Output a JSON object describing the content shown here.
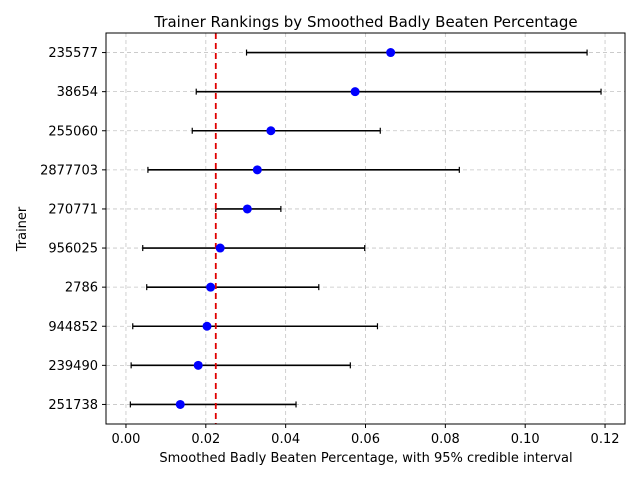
{
  "chart_data": {
    "type": "scatter",
    "title": "Trainer Rankings by Smoothed Badly Beaten Percentage",
    "xlabel": "Smoothed Badly Beaten Percentage, with 95% credible interval",
    "ylabel": "Trainer",
    "xlim": [
      -0.005,
      0.125
    ],
    "x_ticks": [
      "0.00",
      "0.02",
      "0.04",
      "0.06",
      "0.08",
      "0.10",
      "0.12"
    ],
    "grid": true,
    "reference_line": {
      "x": 0.0225,
      "color": "#e00000",
      "style": "dashed"
    },
    "point_color": "#0000ff",
    "errorbar_color": "#000000",
    "trainers": [
      {
        "name": "235577",
        "value": 0.0663,
        "low": 0.0302,
        "high": 0.1155
      },
      {
        "name": "38654",
        "value": 0.0574,
        "low": 0.0176,
        "high": 0.119
      },
      {
        "name": "255060",
        "value": 0.0363,
        "low": 0.0166,
        "high": 0.0637
      },
      {
        "name": "2877703",
        "value": 0.0329,
        "low": 0.0055,
        "high": 0.0835
      },
      {
        "name": "270771",
        "value": 0.0304,
        "low": 0.0225,
        "high": 0.0388
      },
      {
        "name": "956025",
        "value": 0.0236,
        "low": 0.0042,
        "high": 0.0598
      },
      {
        "name": "2786",
        "value": 0.0212,
        "low": 0.0052,
        "high": 0.0483
      },
      {
        "name": "944852",
        "value": 0.0203,
        "low": 0.0017,
        "high": 0.063
      },
      {
        "name": "239490",
        "value": 0.0181,
        "low": 0.0013,
        "high": 0.0562
      },
      {
        "name": "251738",
        "value": 0.0136,
        "low": 0.0011,
        "high": 0.0426
      }
    ]
  }
}
